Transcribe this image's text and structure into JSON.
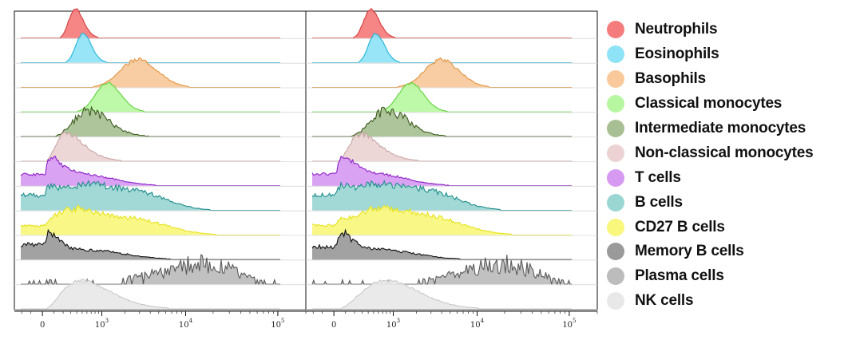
{
  "chart_data": {
    "type": "histogram",
    "title": "",
    "xlabel": "",
    "ylabel": "",
    "x_scale": "biexponential",
    "xlim": [
      -300,
      200000
    ],
    "x_ticks": [
      {
        "value": 0,
        "base": "0",
        "exp": ""
      },
      {
        "value": 1000,
        "base": "10",
        "exp": "3"
      },
      {
        "value": 10000,
        "base": "10",
        "exp": "4"
      },
      {
        "value": 100000,
        "base": "10",
        "exp": "5"
      }
    ],
    "grid": "horizontal row baselines",
    "legend_position": "right",
    "series": [
      {
        "name": "Neutrophils",
        "color": "#f57c7c",
        "edge": "#d63c3c"
      },
      {
        "name": "Eosinophils",
        "color": "#8fe3f7",
        "edge": "#1fb3d6"
      },
      {
        "name": "Basophils",
        "color": "#f9c99b",
        "edge": "#e2923c"
      },
      {
        "name": "Classical monocytes",
        "color": "#b8f7a2",
        "edge": "#5fd23c"
      },
      {
        "name": "Intermediate monocytes",
        "color": "#a7bf92",
        "edge": "#3c5a1e"
      },
      {
        "name": "Non-classical monocytes",
        "color": "#ecd2d2",
        "edge": "#c9a5a5"
      },
      {
        "name": "T cells",
        "color": "#d79af2",
        "edge": "#8c1fc8"
      },
      {
        "name": "B cells",
        "color": "#9ad6d2",
        "edge": "#1e8c8c"
      },
      {
        "name": "CD27 B cells",
        "color": "#f9f77c",
        "edge": "#e6e21e"
      },
      {
        "name": "Memory B cells",
        "color": "#9a9a9a",
        "edge": "#111111"
      },
      {
        "name": "Plasma cells",
        "color": "#bcbcbc",
        "edge": "#5a5a5a"
      },
      {
        "name": "NK cells",
        "color": "#e8e8e8",
        "edge": "#c8c8c8"
      }
    ],
    "panels": [
      {
        "distributions": [
          {
            "series": "Neutrophils",
            "components": [
              {
                "mu": 380,
                "sigma": 0.14,
                "w": 1
              }
            ],
            "noise": 0.04
          },
          {
            "series": "Eosinophils",
            "components": [
              {
                "mu": 520,
                "sigma": 0.13,
                "w": 1
              }
            ],
            "noise": 0.04
          },
          {
            "series": "Basophils",
            "components": [
              {
                "mu": 2900,
                "sigma": 0.22,
                "w": 1
              }
            ],
            "noise": 0.08
          },
          {
            "series": "Classical monocytes",
            "components": [
              {
                "mu": 1200,
                "sigma": 0.17,
                "w": 1
              }
            ],
            "noise": 0.04
          },
          {
            "series": "Intermediate monocytes",
            "components": [
              {
                "mu": 650,
                "sigma": 0.28,
                "w": 1
              }
            ],
            "noise": 0.22
          },
          {
            "series": "Non-classical monocytes",
            "components": [
              {
                "mu": 250,
                "sigma": 0.32,
                "w": 1
              }
            ],
            "noise": 0.1
          },
          {
            "series": "T cells",
            "components": [
              {
                "mu": 80,
                "sigma": 0.45,
                "w": 1
              },
              {
                "mu": 800,
                "sigma": 0.35,
                "w": 0.3
              }
            ],
            "noise": 0.12
          },
          {
            "series": "B cells",
            "components": [
              {
                "mu": 60,
                "sigma": 0.5,
                "w": 0.9
              },
              {
                "mu": 700,
                "sigma": 0.4,
                "w": 0.85
              },
              {
                "mu": 3500,
                "sigma": 0.3,
                "w": 0.5
              }
            ],
            "noise": 0.14
          },
          {
            "series": "CD27 B cells",
            "components": [
              {
                "mu": 60,
                "sigma": 0.5,
                "w": 0.65
              },
              {
                "mu": 450,
                "sigma": 0.4,
                "w": 1
              },
              {
                "mu": 3000,
                "sigma": 0.35,
                "w": 0.6
              }
            ],
            "noise": 0.12
          },
          {
            "series": "Memory B cells",
            "components": [
              {
                "mu": 60,
                "sigma": 0.45,
                "w": 1
              },
              {
                "mu": 900,
                "sigma": 0.4,
                "w": 0.3
              }
            ],
            "noise": 0.16
          },
          {
            "series": "Plasma cells",
            "components": [
              {
                "mu": 18000,
                "sigma": 0.3,
                "w": 1
              },
              {
                "mu": 4500,
                "sigma": 0.35,
                "w": 0.4
              }
            ],
            "noise": 0.5,
            "sparse": true
          },
          {
            "series": "NK cells",
            "components": [
              {
                "mu": 500,
                "sigma": 0.42,
                "w": 1
              }
            ],
            "noise": 0.05
          }
        ]
      },
      {
        "distributions": [
          {
            "series": "Neutrophils",
            "components": [
              {
                "mu": 450,
                "sigma": 0.14,
                "w": 1
              }
            ],
            "noise": 0.04
          },
          {
            "series": "Eosinophils",
            "components": [
              {
                "mu": 550,
                "sigma": 0.13,
                "w": 1
              }
            ],
            "noise": 0.04
          },
          {
            "series": "Basophils",
            "components": [
              {
                "mu": 4000,
                "sigma": 0.2,
                "w": 1
              }
            ],
            "noise": 0.08
          },
          {
            "series": "Classical monocytes",
            "components": [
              {
                "mu": 1700,
                "sigma": 0.16,
                "w": 1
              }
            ],
            "noise": 0.04
          },
          {
            "series": "Intermediate monocytes",
            "components": [
              {
                "mu": 850,
                "sigma": 0.27,
                "w": 1
              }
            ],
            "noise": 0.22
          },
          {
            "series": "Non-classical monocytes",
            "components": [
              {
                "mu": 300,
                "sigma": 0.32,
                "w": 1
              }
            ],
            "noise": 0.1
          },
          {
            "series": "T cells",
            "components": [
              {
                "mu": 80,
                "sigma": 0.45,
                "w": 1
              },
              {
                "mu": 800,
                "sigma": 0.35,
                "w": 0.3
              }
            ],
            "noise": 0.12
          },
          {
            "series": "B cells",
            "components": [
              {
                "mu": 60,
                "sigma": 0.5,
                "w": 0.9
              },
              {
                "mu": 700,
                "sigma": 0.4,
                "w": 0.85
              },
              {
                "mu": 3500,
                "sigma": 0.3,
                "w": 0.5
              }
            ],
            "noise": 0.14
          },
          {
            "series": "CD27 B cells",
            "components": [
              {
                "mu": 60,
                "sigma": 0.5,
                "w": 0.65
              },
              {
                "mu": 650,
                "sigma": 0.4,
                "w": 1
              },
              {
                "mu": 3500,
                "sigma": 0.35,
                "w": 0.6
              }
            ],
            "noise": 0.12
          },
          {
            "series": "Memory B cells",
            "components": [
              {
                "mu": 70,
                "sigma": 0.45,
                "w": 1
              },
              {
                "mu": 900,
                "sigma": 0.4,
                "w": 0.3
              }
            ],
            "noise": 0.16
          },
          {
            "series": "Plasma cells",
            "components": [
              {
                "mu": 22000,
                "sigma": 0.32,
                "w": 1
              },
              {
                "mu": 6000,
                "sigma": 0.35,
                "w": 0.4
              }
            ],
            "noise": 0.5,
            "sparse": true
          },
          {
            "series": "NK cells",
            "components": [
              {
                "mu": 800,
                "sigma": 0.42,
                "w": 1
              }
            ],
            "noise": 0.05
          }
        ]
      }
    ]
  }
}
